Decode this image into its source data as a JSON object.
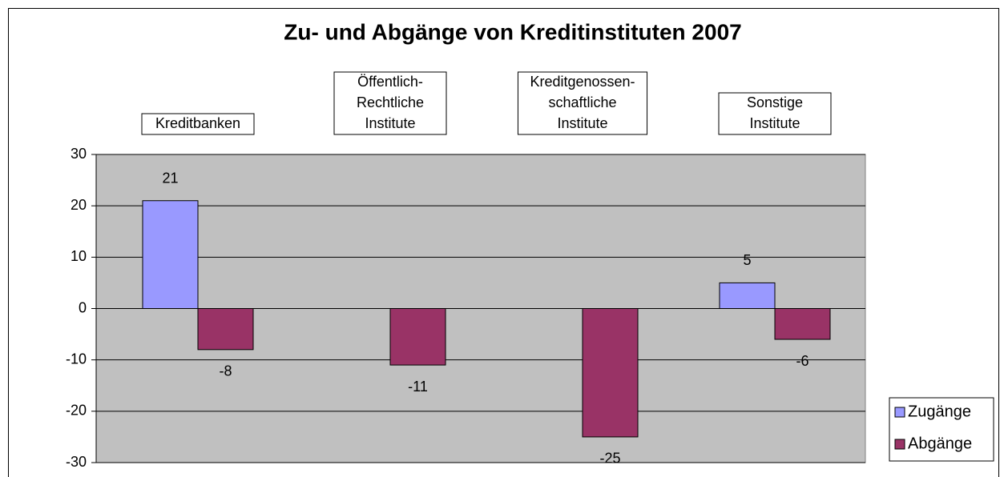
{
  "chart_data": {
    "type": "bar",
    "title": "Zu- und Abgänge von Kreditinstituten 2007",
    "categories": [
      [
        "Kreditbanken"
      ],
      [
        "Öffentlich-",
        "Rechtliche",
        "Institute"
      ],
      [
        "Kreditgenossen-",
        "schaftliche",
        "Institute"
      ],
      [
        "Sonstige",
        "Institute"
      ]
    ],
    "series": [
      {
        "name": "Zugänge",
        "color": "#9999ff",
        "values": [
          21,
          null,
          null,
          5
        ]
      },
      {
        "name": "Abgänge",
        "color": "#993366",
        "values": [
          -8,
          -11,
          -25,
          -6
        ]
      }
    ],
    "ylim": [
      -30,
      30
    ],
    "yticks": [
      -30,
      -20,
      -10,
      0,
      10,
      20,
      30
    ],
    "grid": true,
    "legend": "right"
  }
}
